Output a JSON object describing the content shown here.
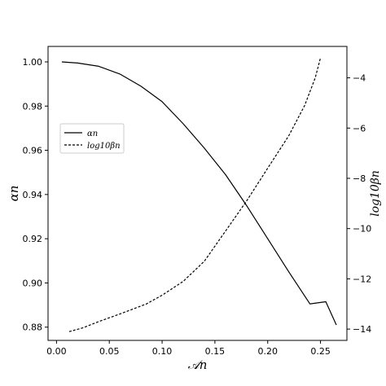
{
  "chart_data": {
    "type": "line",
    "xlabel": "𝒜n",
    "ylabel_left": "αn",
    "ylabel_right": "log10βn",
    "xlim": [
      -0.008,
      0.275
    ],
    "ylim_left": [
      0.874,
      1.007
    ],
    "ylim_right": [
      -14.45,
      -2.75
    ],
    "x_ticks": [
      "0.00",
      "0.05",
      "0.10",
      "0.15",
      "0.20",
      "0.25"
    ],
    "x_tick_values": [
      0,
      0.05,
      0.1,
      0.15,
      0.2,
      0.25
    ],
    "left_ticks": [
      "0.88",
      "0.90",
      "0.92",
      "0.94",
      "0.96",
      "0.98",
      "1.00"
    ],
    "left_tick_values": [
      0.88,
      0.9,
      0.92,
      0.94,
      0.96,
      0.98,
      1.0
    ],
    "right_ticks": [
      "−14",
      "−12",
      "−10",
      "−8",
      "−6",
      "−4"
    ],
    "right_tick_values": [
      -14,
      -12,
      -10,
      -8,
      -6,
      -4
    ],
    "legend": {
      "placement": "center-left",
      "entries": [
        {
          "label": "αn",
          "style": "solid"
        },
        {
          "label": "log10βn",
          "style": "dashed"
        }
      ]
    },
    "series": [
      {
        "name": "αn",
        "axis": "left",
        "style": "solid",
        "color": "#000000",
        "x": [
          0.005,
          0.02,
          0.04,
          0.06,
          0.08,
          0.1,
          0.12,
          0.14,
          0.16,
          0.18,
          0.2,
          0.22,
          0.24,
          0.255,
          0.265
        ],
        "y": [
          1.0,
          0.9995,
          0.998,
          0.9945,
          0.989,
          0.982,
          0.972,
          0.961,
          0.949,
          0.935,
          0.92,
          0.905,
          0.8905,
          0.8915,
          0.881
        ]
      },
      {
        "name": "log10βn",
        "axis": "right",
        "style": "dashed",
        "color": "#000000",
        "x": [
          0.012,
          0.025,
          0.04,
          0.06,
          0.085,
          0.1,
          0.12,
          0.14,
          0.16,
          0.18,
          0.2,
          0.22,
          0.235,
          0.245,
          0.25
        ],
        "y": [
          -14.1,
          -13.95,
          -13.7,
          -13.4,
          -13.0,
          -12.65,
          -12.1,
          -11.3,
          -10.1,
          -8.9,
          -7.6,
          -6.3,
          -5.1,
          -4.0,
          -3.2
        ]
      }
    ]
  }
}
